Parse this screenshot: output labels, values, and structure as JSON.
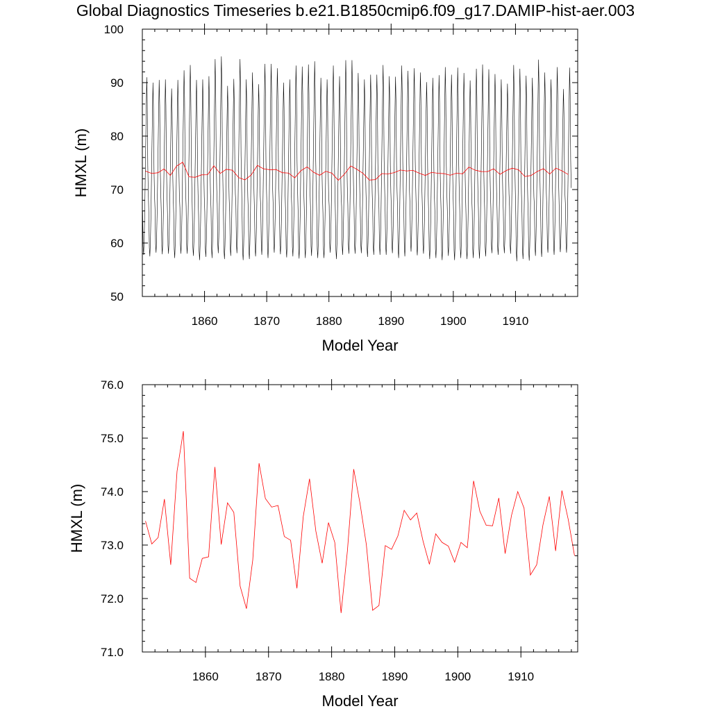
{
  "page_title": "Global Diagnostics Timeseries b.e21.B1850cmip6.f09_g17.DAMIP-hist-aer.003",
  "colors": {
    "monthly": "#000000",
    "annual": "#ff0000"
  },
  "chart_data": [
    {
      "type": "line",
      "xlabel": "Model Year",
      "ylabel": "HMXL (m)",
      "xlim": [
        1850,
        1920
      ],
      "ylim": [
        50,
        100
      ],
      "xticks": [
        1860,
        1870,
        1880,
        1890,
        1900,
        1910
      ],
      "xtick_labels": [
        "1860",
        "1870",
        "1880",
        "1890",
        "1900",
        "1910"
      ],
      "yticks": [
        50,
        60,
        70,
        80,
        90,
        100
      ],
      "ytick_labels": [
        "50",
        "60",
        "70",
        "80",
        "90",
        "100"
      ],
      "series": [
        {
          "style": "monthly",
          "annual_min": [
            57.8,
            57.5,
            58.2,
            57.9,
            58.0,
            57.2,
            58.0,
            58.0,
            57.6,
            56.8,
            57.4,
            57.2,
            58.1,
            57.0,
            57.6,
            58.1,
            56.8,
            57.0,
            57.5,
            57.8,
            57.2,
            58.2,
            57.9,
            57.3,
            57.5,
            57.1,
            57.2,
            57.6,
            57.2,
            57.2,
            58.2,
            57.0,
            57.8,
            58.0,
            58.0,
            58.1,
            57.4,
            57.8,
            57.8,
            57.8,
            58.1,
            57.2,
            57.5,
            58.4,
            57.7,
            58.0,
            57.0,
            57.2,
            56.8,
            57.6,
            56.8,
            57.2,
            57.0,
            57.2,
            57.1,
            57.5,
            58.1,
            57.8,
            58.1,
            58.0,
            56.6,
            57.0,
            56.7,
            57.6,
            57.4,
            58.2,
            57.8,
            58.3,
            58.2
          ],
          "annual_max": [
            91.0,
            90.0,
            90.5,
            90.6,
            88.9,
            90.5,
            92.3,
            93.3,
            90.5,
            90.6,
            91.2,
            94.4,
            94.9,
            89.4,
            90.7,
            94.4,
            90.6,
            91.9,
            89.7,
            93.5,
            93.5,
            92.7,
            90.0,
            90.6,
            93.2,
            93.0,
            93.4,
            94.0,
            90.9,
            90.6,
            93.2,
            91.2,
            94.2,
            94.2,
            91.8,
            90.6,
            91.5,
            91.5,
            93.3,
            91.2,
            91.1,
            93.2,
            92.2,
            92.7,
            91.9,
            90.1,
            90.9,
            91.4,
            92.9,
            91.5,
            92.8,
            91.8,
            90.4,
            92.6,
            93.4,
            92.5,
            91.6,
            90.6,
            89.8,
            93.3,
            92.6,
            91.3,
            90.9,
            94.3,
            91.9,
            90.6,
            92.9,
            88.8,
            92.8
          ]
        },
        {
          "style": "annual",
          "x": [
            1850.5,
            1851.5,
            1852.5,
            1853.5,
            1854.5,
            1855.5,
            1856.5,
            1857.5,
            1858.5,
            1859.5,
            1860.5,
            1861.5,
            1862.5,
            1863.5,
            1864.5,
            1865.5,
            1866.5,
            1867.5,
            1868.5,
            1869.5,
            1870.5,
            1871.5,
            1872.5,
            1873.5,
            1874.5,
            1875.5,
            1876.5,
            1877.5,
            1878.5,
            1879.5,
            1880.5,
            1881.5,
            1882.5,
            1883.5,
            1884.5,
            1885.5,
            1886.5,
            1887.5,
            1888.5,
            1889.5,
            1890.5,
            1891.5,
            1892.5,
            1893.5,
            1894.5,
            1895.5,
            1896.5,
            1897.5,
            1898.5,
            1899.5,
            1900.5,
            1901.5,
            1902.5,
            1903.5,
            1904.5,
            1905.5,
            1906.5,
            1907.5,
            1908.5,
            1909.5,
            1910.5,
            1911.5,
            1912.5,
            1913.5,
            1914.5,
            1915.5,
            1916.5,
            1917.5,
            1918.5
          ],
          "values": [
            73.45,
            73.02,
            73.14,
            73.86,
            72.63,
            74.38,
            75.13,
            72.38,
            72.3,
            72.75,
            72.78,
            74.46,
            73.01,
            73.79,
            73.61,
            72.23,
            71.81,
            72.72,
            74.53,
            73.87,
            73.71,
            73.74,
            73.16,
            73.09,
            72.19,
            73.53,
            74.24,
            73.26,
            72.66,
            73.42,
            73.05,
            71.73,
            72.89,
            74.42,
            73.78,
            73.01,
            71.78,
            71.87,
            72.99,
            72.92,
            73.17,
            73.65,
            73.47,
            73.6,
            73.07,
            72.64,
            73.21,
            73.05,
            72.98,
            72.68,
            73.05,
            72.95,
            74.2,
            73.63,
            73.37,
            73.36,
            73.88,
            72.84,
            73.55,
            74.0,
            73.69,
            72.44,
            72.63,
            73.38,
            73.91,
            72.89,
            74.02,
            73.48,
            72.8
          ]
        }
      ]
    },
    {
      "type": "line",
      "xlabel": "Model Year",
      "ylabel": "HMXL (m)",
      "xlim": [
        1850,
        1919
      ],
      "ylim": [
        71.0,
        76.0
      ],
      "xticks": [
        1860,
        1870,
        1880,
        1890,
        1900,
        1910
      ],
      "xtick_labels": [
        "1860",
        "1870",
        "1880",
        "1890",
        "1900",
        "1910"
      ],
      "yticks": [
        71.0,
        72.0,
        73.0,
        74.0,
        75.0,
        76.0
      ],
      "ytick_labels": [
        "71.0",
        "72.0",
        "73.0",
        "74.0",
        "75.0",
        "76.0"
      ],
      "series": [
        {
          "style": "annual",
          "x": [
            1850.5,
            1851.5,
            1852.5,
            1853.5,
            1854.5,
            1855.5,
            1856.5,
            1857.5,
            1858.5,
            1859.5,
            1860.5,
            1861.5,
            1862.5,
            1863.5,
            1864.5,
            1865.5,
            1866.5,
            1867.5,
            1868.5,
            1869.5,
            1870.5,
            1871.5,
            1872.5,
            1873.5,
            1874.5,
            1875.5,
            1876.5,
            1877.5,
            1878.5,
            1879.5,
            1880.5,
            1881.5,
            1882.5,
            1883.5,
            1884.5,
            1885.5,
            1886.5,
            1887.5,
            1888.5,
            1889.5,
            1890.5,
            1891.5,
            1892.5,
            1893.5,
            1894.5,
            1895.5,
            1896.5,
            1897.5,
            1898.5,
            1899.5,
            1900.5,
            1901.5,
            1902.5,
            1903.5,
            1904.5,
            1905.5,
            1906.5,
            1907.5,
            1908.5,
            1909.5,
            1910.5,
            1911.5,
            1912.5,
            1913.5,
            1914.5,
            1915.5,
            1916.5,
            1917.5,
            1918.5
          ],
          "values": [
            73.45,
            73.02,
            73.14,
            73.86,
            72.63,
            74.38,
            75.13,
            72.38,
            72.3,
            72.75,
            72.78,
            74.46,
            73.01,
            73.79,
            73.61,
            72.23,
            71.81,
            72.72,
            74.53,
            73.87,
            73.71,
            73.74,
            73.16,
            73.09,
            72.19,
            73.53,
            74.24,
            73.26,
            72.66,
            73.42,
            73.05,
            71.73,
            72.89,
            74.42,
            73.78,
            73.01,
            71.78,
            71.87,
            72.99,
            72.92,
            73.17,
            73.65,
            73.47,
            73.6,
            73.07,
            72.64,
            73.21,
            73.05,
            72.98,
            72.68,
            73.05,
            72.95,
            74.2,
            73.63,
            73.37,
            73.36,
            73.88,
            72.84,
            73.55,
            74.0,
            73.69,
            72.44,
            72.63,
            73.38,
            73.91,
            72.89,
            74.02,
            73.48,
            72.8
          ]
        }
      ]
    }
  ]
}
